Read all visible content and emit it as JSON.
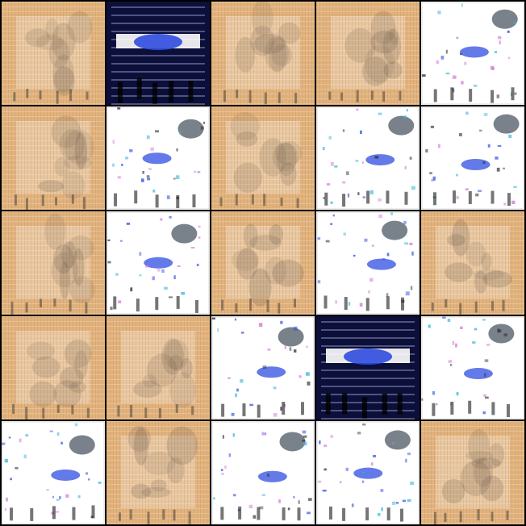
{
  "grid": {
    "rows": 5,
    "cols": 5,
    "palette": {
      "tan": "#e2b27c",
      "tan_dark": "#b98a5a",
      "white": "#ffffff",
      "navy": "#0b0f3a",
      "blue": "#2f4de0",
      "cyan": "#39b6d8",
      "magenta": "#d07bd6",
      "black": "#111111"
    },
    "tiles": [
      {
        "style": "tan"
      },
      {
        "style": "blue_dark"
      },
      {
        "style": "tan"
      },
      {
        "style": "tan"
      },
      {
        "style": "light"
      },
      {
        "style": "tan"
      },
      {
        "style": "light"
      },
      {
        "style": "tan"
      },
      {
        "style": "light"
      },
      {
        "style": "light"
      },
      {
        "style": "tan"
      },
      {
        "style": "light"
      },
      {
        "style": "tan"
      },
      {
        "style": "light"
      },
      {
        "style": "tan"
      },
      {
        "style": "tan"
      },
      {
        "style": "tan"
      },
      {
        "style": "light"
      },
      {
        "style": "blue_dark"
      },
      {
        "style": "light"
      },
      {
        "style": "light"
      },
      {
        "style": "tan"
      },
      {
        "style": "light"
      },
      {
        "style": "light"
      },
      {
        "style": "tan"
      }
    ]
  }
}
